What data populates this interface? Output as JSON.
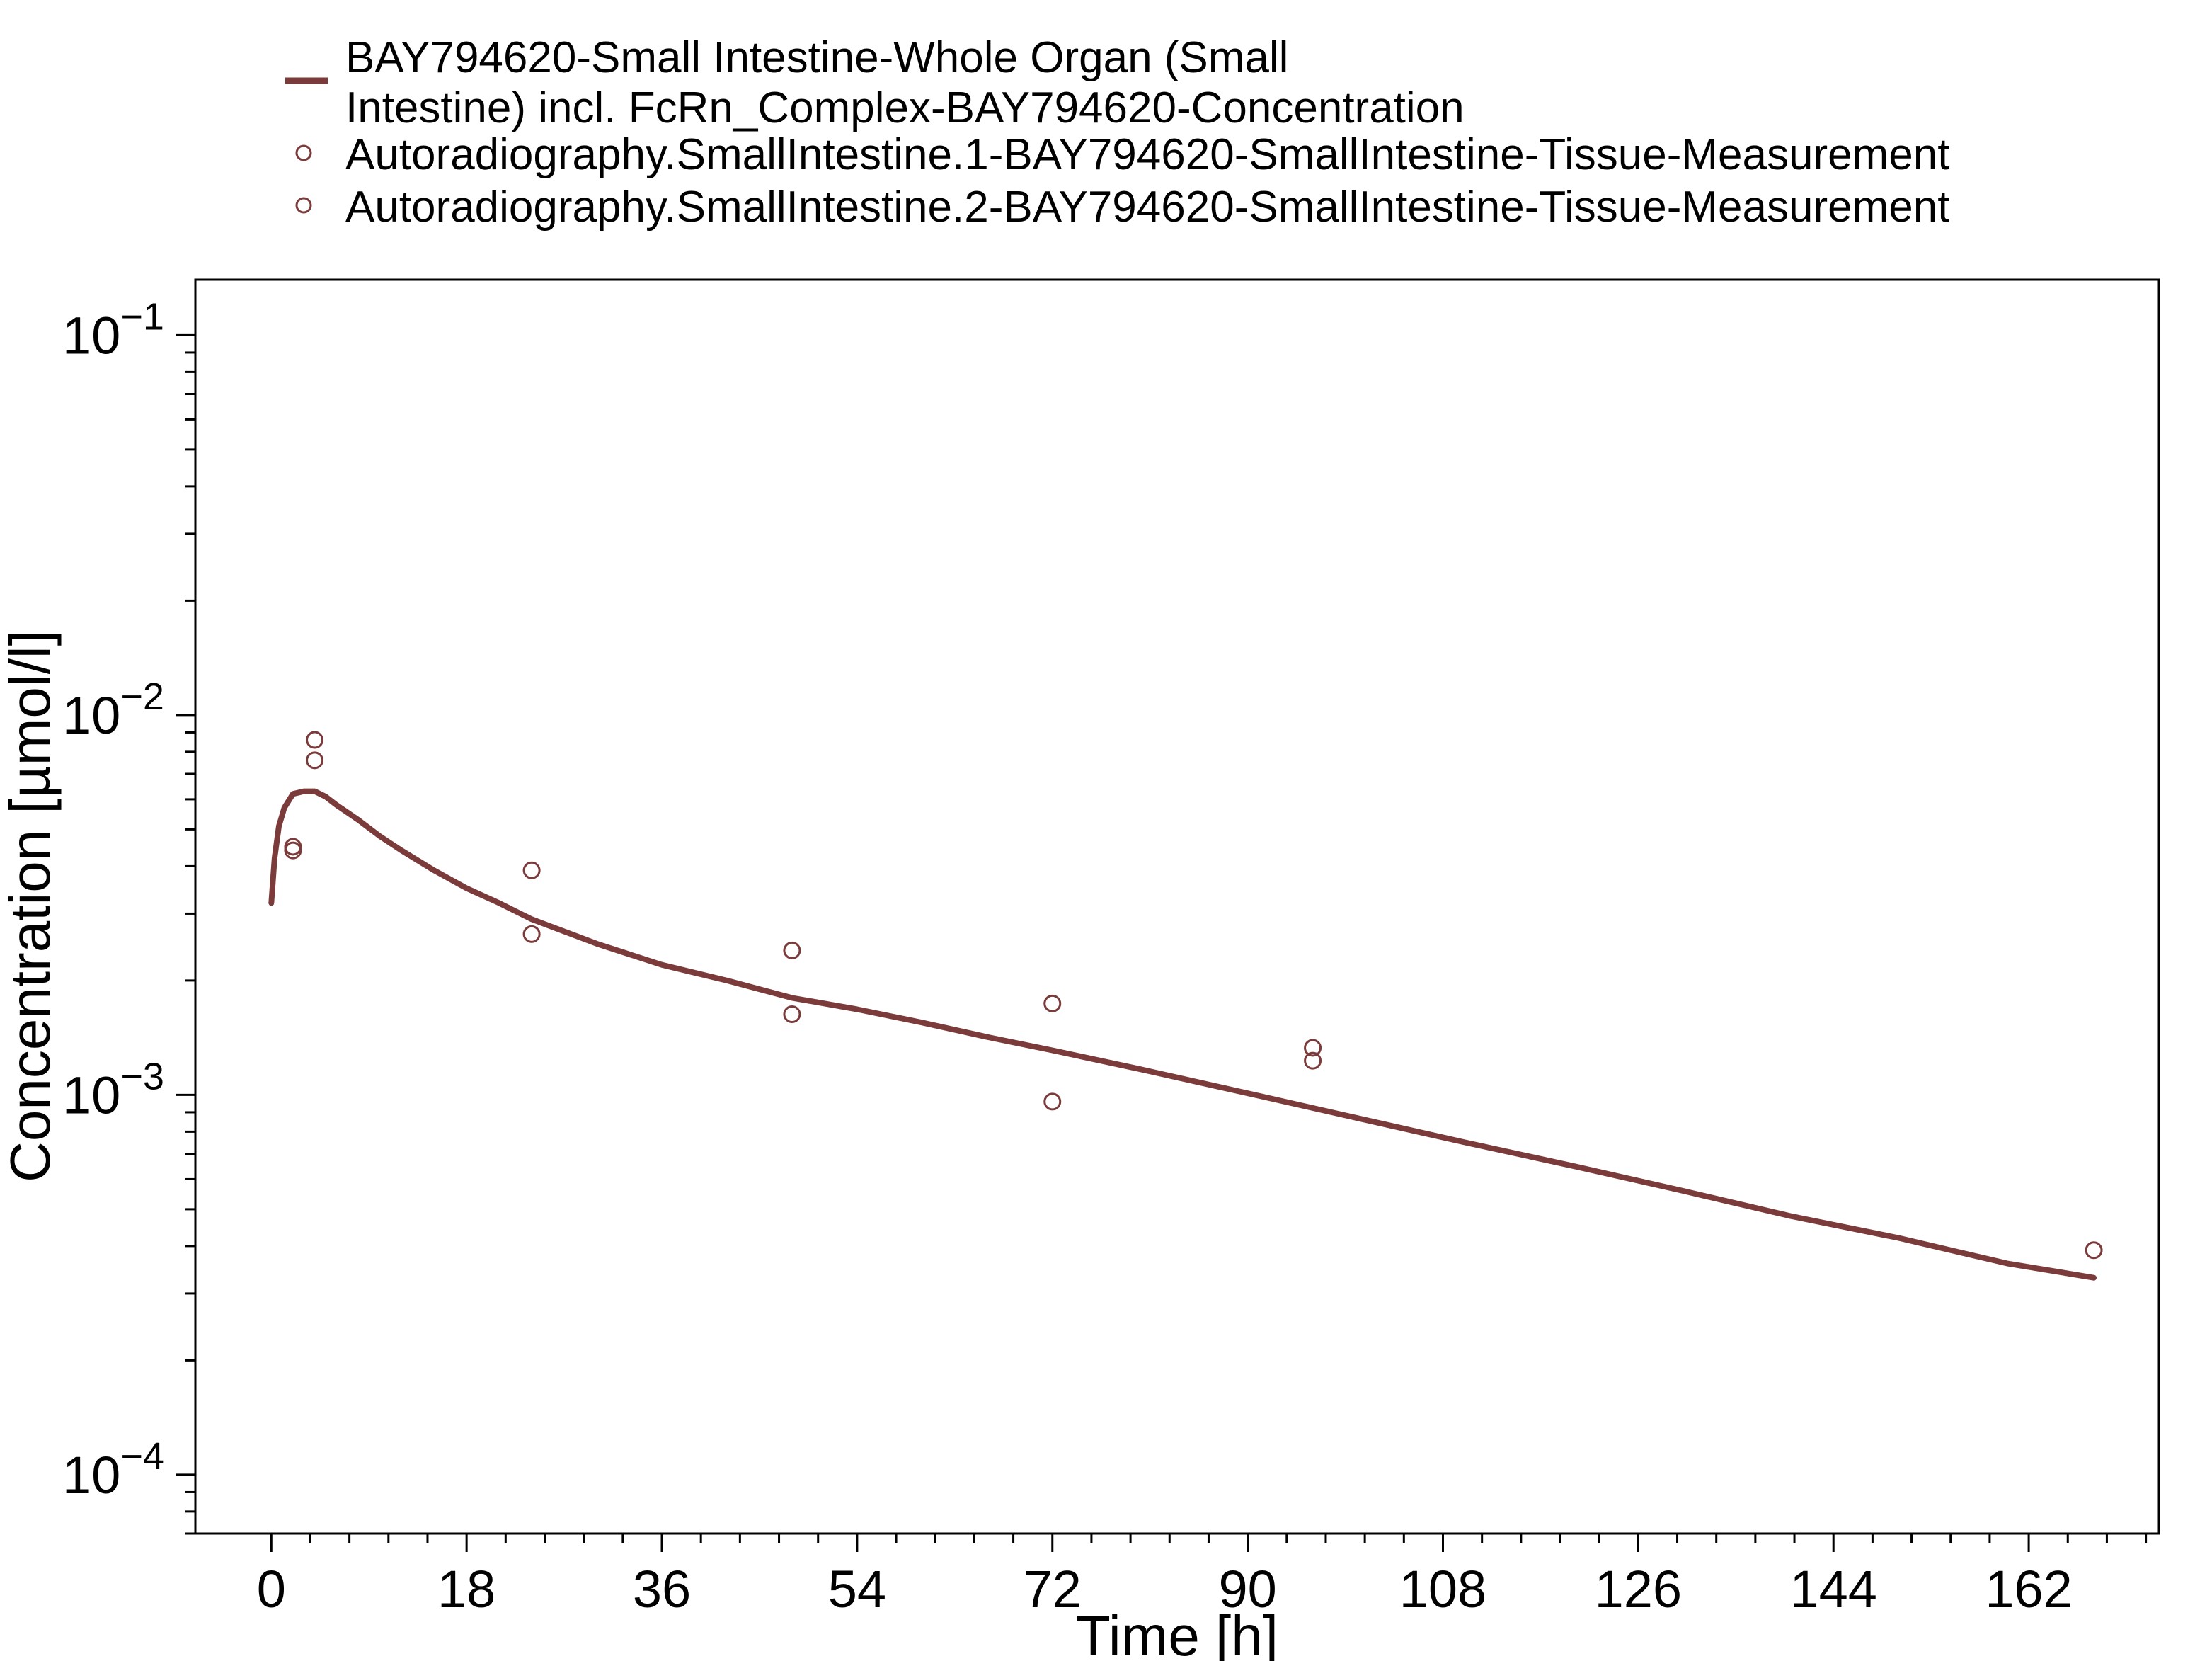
{
  "chart_data": {
    "type": "line",
    "title": "",
    "xlabel": "Time [h]",
    "ylabel": "Concentration [µmol/l]",
    "x_scale": "linear",
    "y_scale": "log",
    "xlim": [
      -7,
      174
    ],
    "ylim": [
      7e-05,
      0.14
    ],
    "x_ticks": [
      0,
      18,
      36,
      54,
      72,
      90,
      108,
      126,
      144,
      162
    ],
    "x_tick_labels": [
      "0",
      "18",
      "36",
      "54",
      "72",
      "90",
      "108",
      "126",
      "144",
      "162"
    ],
    "y_ticks": [
      {
        "value": 0.1,
        "base": "10",
        "exponent": "−1"
      },
      {
        "value": 0.01,
        "base": "10",
        "exponent": "−2"
      },
      {
        "value": 0.001,
        "base": "10",
        "exponent": "−3"
      },
      {
        "value": 0.0001,
        "base": "10",
        "exponent": "−4"
      }
    ],
    "grid": false,
    "legend_position": "top",
    "color": "#7b3b3b",
    "series": [
      {
        "name": "BAY794620-Small Intestine-Whole Organ (Small Intestine) incl. FcRn_Complex-BAY794620-Concentration",
        "legend_lines": [
          "BAY794620-Small Intestine-Whole Organ (Small",
          "Intestine) incl. FcRn_Complex-BAY794620-Concentration"
        ],
        "style": "line",
        "x": [
          0,
          0.3,
          0.7,
          1.2,
          2,
          3,
          4,
          5,
          6,
          8,
          10,
          12,
          15,
          18,
          21,
          24,
          30,
          36,
          42,
          48,
          54,
          60,
          66,
          72,
          80,
          90,
          100,
          110,
          120,
          130,
          140,
          150,
          160,
          168
        ],
        "y": [
          0.0032,
          0.0042,
          0.0051,
          0.0057,
          0.0062,
          0.0063,
          0.0063,
          0.0061,
          0.0058,
          0.0053,
          0.0048,
          0.0044,
          0.0039,
          0.0035,
          0.0032,
          0.0029,
          0.0025,
          0.0022,
          0.002,
          0.0018,
          0.00168,
          0.00155,
          0.00142,
          0.00131,
          0.00117,
          0.00101,
          0.00087,
          0.00075,
          0.00065,
          0.00056,
          0.00048,
          0.00042,
          0.00036,
          0.00033
        ]
      },
      {
        "name": "Autoradiography.SmallIntestine.1-BAY794620-SmallIntestine-Tissue-Measurement",
        "style": "marker",
        "x": [
          2,
          4,
          24,
          48,
          72,
          96,
          168
        ],
        "y": [
          0.0045,
          0.0086,
          0.0039,
          0.0024,
          0.00174,
          0.00133,
          0.00039
        ]
      },
      {
        "name": "Autoradiography.SmallIntestine.2-BAY794620-SmallIntestine-Tissue-Measurement",
        "style": "marker",
        "x": [
          2,
          4,
          24,
          48,
          72,
          96
        ],
        "y": [
          0.0044,
          0.0076,
          0.00265,
          0.00163,
          0.00096,
          0.00123
        ]
      }
    ]
  }
}
